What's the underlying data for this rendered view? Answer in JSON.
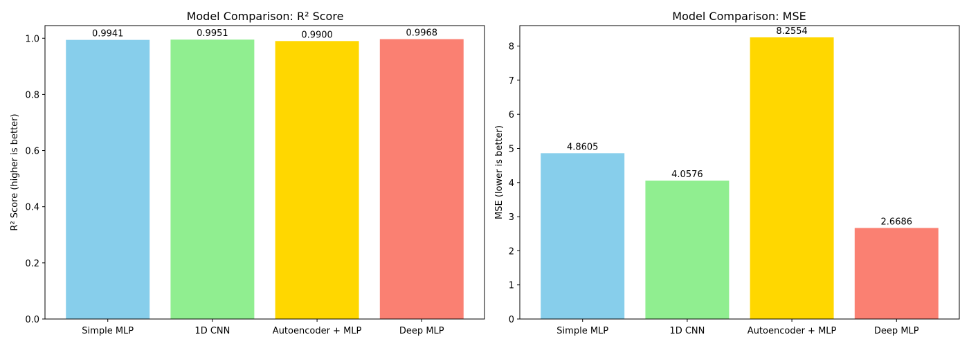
{
  "chart_data": [
    {
      "type": "bar",
      "title": "Model Comparison: R² Score",
      "xlabel": "",
      "ylabel": "R² Score (higher is better)",
      "categories": [
        "Simple MLP",
        "1D CNN",
        "Autoencoder + MLP",
        "Deep MLP"
      ],
      "values": [
        0.9941,
        0.9951,
        0.99,
        0.9968
      ],
      "value_labels": [
        "0.9941",
        "0.9951",
        "0.9900",
        "0.9968"
      ],
      "bar_colors": [
        "#87ceeb",
        "#90ee90",
        "#ffd700",
        "#fa8072"
      ],
      "ylim": [
        0,
        1.045
      ],
      "yticks": [
        0.0,
        0.2,
        0.4,
        0.6,
        0.8,
        1.0
      ],
      "ytick_labels": [
        "0.0",
        "0.2",
        "0.4",
        "0.6",
        "0.8",
        "1.0"
      ],
      "grid": false,
      "legend": "none"
    },
    {
      "type": "bar",
      "title": "Model Comparison: MSE",
      "xlabel": "",
      "ylabel": "MSE (lower is better)",
      "categories": [
        "Simple MLP",
        "1D CNN",
        "Autoencoder + MLP",
        "Deep MLP"
      ],
      "values": [
        4.8605,
        4.0576,
        8.2554,
        2.6686
      ],
      "value_labels": [
        "4.8605",
        "4.0576",
        "8.2554",
        "2.6686"
      ],
      "bar_colors": [
        "#87ceeb",
        "#90ee90",
        "#ffd700",
        "#fa8072"
      ],
      "ylim": [
        0,
        8.6
      ],
      "yticks": [
        0,
        1,
        2,
        3,
        4,
        5,
        6,
        7,
        8
      ],
      "ytick_labels": [
        "0",
        "1",
        "2",
        "3",
        "4",
        "5",
        "6",
        "7",
        "8"
      ],
      "grid": false,
      "legend": "none"
    }
  ]
}
